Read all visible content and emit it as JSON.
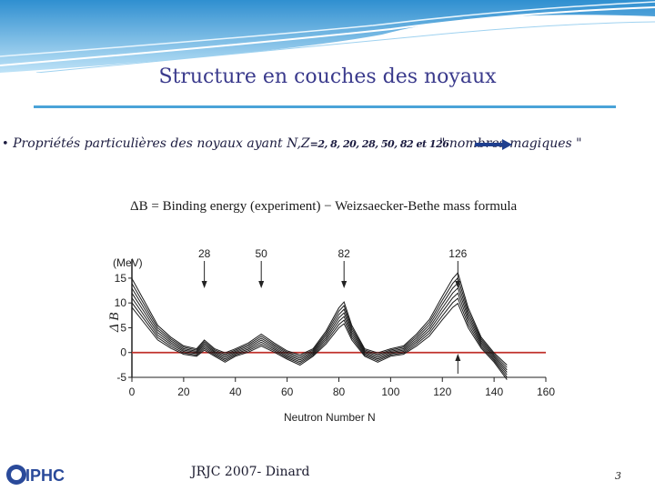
{
  "slide": {
    "title": "Structure en couches des noyaux",
    "bullet_text": "Propriétés  particulières des  noyaux ayant  N,Z",
    "bullet_numbers": "=2, 8, 20, 28, 50, 82 et 126",
    "magic_text": "\" nombres magiques \"",
    "footer": "JRJC 2007- Dinard",
    "page_number": "3",
    "logo_text": "IPHC"
  },
  "colors": {
    "title": "#3a3a8c",
    "rule": "#4aa3d8",
    "banner": "#2f8fd0",
    "arrow": "#1f3f8f",
    "zero_line": "#c0302a",
    "curves": "#1a1a1a"
  },
  "chart_data": {
    "type": "line",
    "title": "ΔB = Binding energy (experiment) − Weizsaecker-Bethe mass formula",
    "xlabel": "Neutron Number  N",
    "ylabel": "Δ B",
    "yunit": "(MeV)",
    "xlim": [
      0,
      160
    ],
    "ylim": [
      -5,
      17
    ],
    "xticks": [
      "0",
      "20",
      "40",
      "60",
      "80",
      "100",
      "120",
      "140",
      "160"
    ],
    "yticks": [
      "15",
      "10",
      "5",
      "0",
      "-5"
    ],
    "reference_line": 0,
    "annotations": [
      {
        "label": "28",
        "x": 28
      },
      {
        "label": "50",
        "x": 50
      },
      {
        "label": "82",
        "x": 82
      },
      {
        "label": "126",
        "x": 126
      }
    ],
    "curve_shape": {
      "x": [
        0,
        5,
        10,
        15,
        20,
        25,
        28,
        32,
        36,
        40,
        45,
        50,
        55,
        60,
        65,
        70,
        75,
        80,
        82,
        85,
        90,
        95,
        100,
        105,
        110,
        115,
        120,
        124,
        126,
        130,
        135,
        140,
        145
      ],
      "y": [
        12,
        8,
        4,
        2,
        0.5,
        0,
        1.5,
        0,
        -1,
        0,
        1,
        2.5,
        1,
        -0.5,
        -1.5,
        0,
        3,
        7,
        8,
        4,
        0,
        -1,
        0,
        0.5,
        2.5,
        5,
        9,
        12,
        13,
        7,
        2,
        -1,
        -4
      ]
    },
    "series_offsets": [
      -3,
      -2,
      -1,
      0,
      1,
      2,
      3
    ]
  }
}
